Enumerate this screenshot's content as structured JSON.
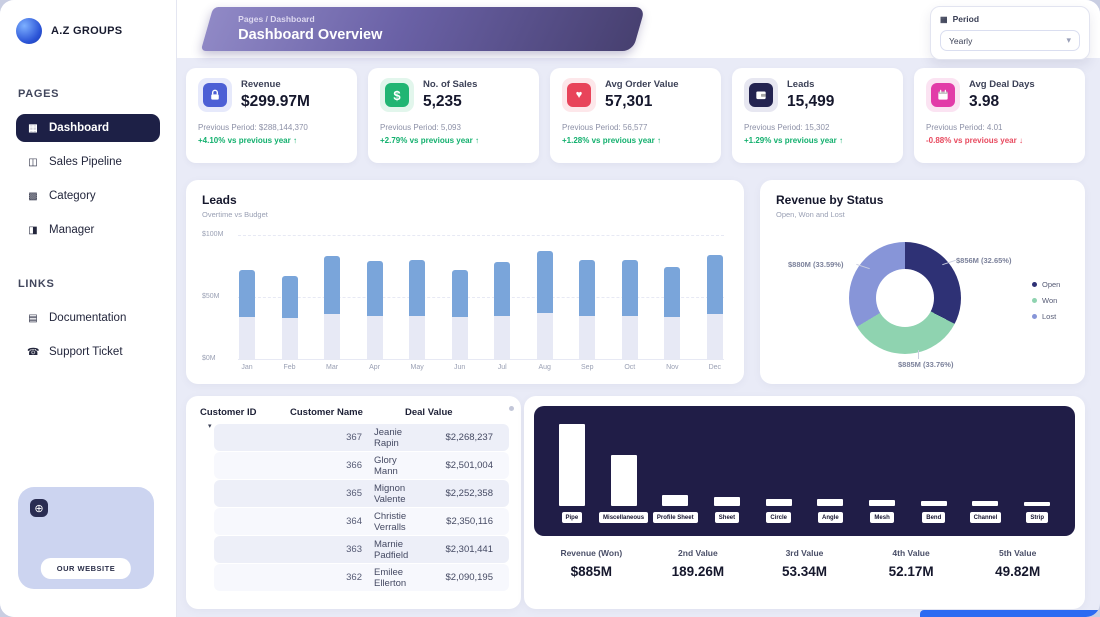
{
  "sidebar": {
    "logo": {
      "text": "A.Z GROUPS"
    },
    "pages_heading": "PAGES",
    "links_heading": "LINKS",
    "pages": [
      {
        "label": "Dashboard",
        "icon": "grid-icon",
        "active": true
      },
      {
        "label": "Sales Pipeline",
        "icon": "pipeline-icon",
        "active": false
      },
      {
        "label": "Category",
        "icon": "category-icon",
        "active": false
      },
      {
        "label": "Manager",
        "icon": "manager-icon",
        "active": false
      }
    ],
    "links": [
      {
        "label": "Documentation",
        "icon": "docs-icon",
        "active": false
      },
      {
        "label": "Support Ticket",
        "icon": "headset-icon",
        "active": false
      }
    ],
    "website_card": {
      "button_label": "OUR WEBSITE"
    }
  },
  "header": {
    "breadcrumb": "Pages / Dashboard",
    "title": "Dashboard Overview",
    "period": {
      "label": "Period",
      "value": "Yearly"
    }
  },
  "kpis": [
    {
      "title": "Revenue",
      "value": "$299.97M",
      "previous": "Previous Period: $288,144,370",
      "change": "+4.10% vs previous year",
      "arrow": "↑",
      "direction": "up",
      "color": "#4c5fd5",
      "tint": "#e6e9fb",
      "icon": "lock-icon"
    },
    {
      "title": "No. of Sales",
      "value": "5,235",
      "previous": "Previous Period: 5,093",
      "change": "+2.79% vs previous year",
      "arrow": "↑",
      "direction": "up",
      "color": "#21b573",
      "tint": "#e2f6ec",
      "icon": "dollar-icon"
    },
    {
      "title": "Avg Order Value",
      "value": "57,301",
      "previous": "Previous Period: 56,577",
      "change": "+1.28% vs previous year",
      "arrow": "↑",
      "direction": "up",
      "color": "#e8445a",
      "tint": "#fde7ea",
      "icon": "heart-icon"
    },
    {
      "title": "Leads",
      "value": "15,499",
      "previous": "Previous Period: 15,302",
      "change": "+1.29% vs previous year",
      "arrow": "↑",
      "direction": "up",
      "color": "#232350",
      "tint": "#e7e7f1",
      "icon": "wallet-icon"
    },
    {
      "title": "Avg Deal Days",
      "value": "3.98",
      "previous": "Previous Period: 4.01",
      "change": "-0.88% vs previous year",
      "arrow": "↓",
      "direction": "down",
      "color": "#e23ba8",
      "tint": "#fbe3f2",
      "icon": "calendar-icon"
    }
  ],
  "leads_chart": {
    "type": "stacked-bar",
    "title": "Leads",
    "subtitle": "Overtime vs Budget",
    "categories": [
      "Jan",
      "Feb",
      "Mar",
      "Apr",
      "May",
      "Jun",
      "Jul",
      "Aug",
      "Sep",
      "Oct",
      "Nov",
      "Dec"
    ],
    "series": [
      {
        "name": "Budget",
        "color": "#e7e9f5",
        "values": [
          34,
          33,
          36,
          35,
          35,
          34,
          35,
          37,
          35,
          35,
          34,
          36
        ]
      },
      {
        "name": "Overtime",
        "color": "#7aa5da",
        "values": [
          72,
          67,
          83,
          79,
          80,
          72,
          78,
          87,
          80,
          80,
          74,
          84
        ]
      }
    ],
    "ylim": [
      0,
      100
    ],
    "yticks": [
      "$0M",
      "$50M",
      "$100M"
    ]
  },
  "revenue_status": {
    "type": "donut",
    "title": "Revenue by Status",
    "subtitle": "Open, Won and Lost",
    "slices": [
      {
        "name": "Open",
        "value": "$856M",
        "pct": 32.65,
        "color": "#2e3175"
      },
      {
        "name": "Won",
        "value": "$885M",
        "pct": 33.76,
        "color": "#8fd3b0"
      },
      {
        "name": "Lost",
        "value": "$880M",
        "pct": 33.59,
        "color": "#8795d8"
      }
    ],
    "labels": {
      "left": "$880M (33.59%)",
      "right": "$856M (32.65%)",
      "bottom": "$885M (33.76%)"
    }
  },
  "customers_table": {
    "columns": [
      "Customer ID",
      "Customer Name",
      "Deal Value"
    ],
    "rows": [
      [
        "367",
        "Jeanie Rapin",
        "$2,268,237"
      ],
      [
        "366",
        "Glory Mann",
        "$2,501,004"
      ],
      [
        "365",
        "Mignon Valente",
        "$2,252,358"
      ],
      [
        "364",
        "Christie Verralls",
        "$2,350,116"
      ],
      [
        "363",
        "Marnie Padfield",
        "$2,301,441"
      ],
      [
        "362",
        "Emilee Ellerton",
        "$2,090,195"
      ]
    ]
  },
  "materials_chart": {
    "type": "bar",
    "categories": [
      "Pipe",
      "Miscellaneous",
      "Profile Sheet",
      "Sheet",
      "Circle",
      "Angle",
      "Mesh",
      "Bend",
      "Channel",
      "Strip"
    ],
    "heights_pct": [
      100,
      62,
      14,
      11,
      9,
      8,
      7,
      6,
      6,
      5
    ],
    "bar_color": "#ffffff",
    "panel_color": "#201d47"
  },
  "summary_stats": [
    {
      "label": "Revenue (Won)",
      "value": "$885M"
    },
    {
      "label": "2nd Value",
      "value": "189.26M"
    },
    {
      "label": "3rd Value",
      "value": "53.34M"
    },
    {
      "label": "4th Value",
      "value": "52.17M"
    },
    {
      "label": "5th Value",
      "value": "49.82M"
    }
  ]
}
